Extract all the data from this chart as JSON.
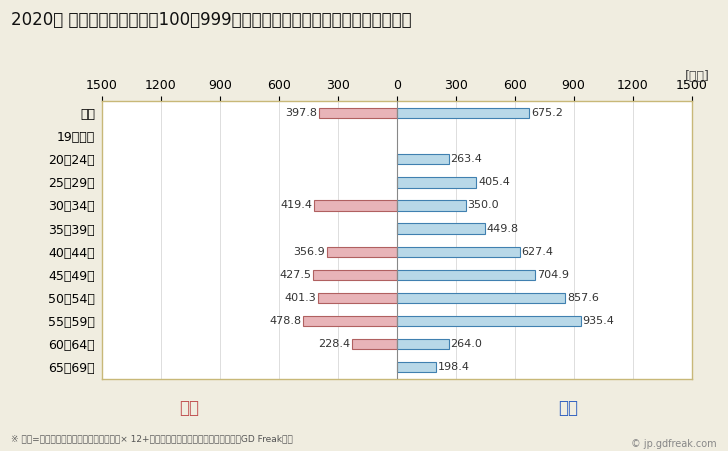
{
  "title": "2020年 民間企業（従業者数100〜999人）フルタイム労働者の男女別平均年収",
  "unit_label": "[万円]",
  "footnote": "※ 年収=「きまって支給する現金給与額」× 12+「年間賞与その他特別給与額」としてGD Freak推計",
  "copyright": "© jp.gdfreak.com",
  "categories": [
    "全体",
    "19歳以下",
    "20〜24歳",
    "25〜29歳",
    "30〜34歳",
    "35〜39歳",
    "40〜44歳",
    "45〜49歳",
    "50〜54歳",
    "55〜59歳",
    "60〜64歳",
    "65〜69歳"
  ],
  "female_values": [
    397.8,
    0,
    0,
    0,
    419.4,
    0,
    356.9,
    427.5,
    401.3,
    478.8,
    228.4,
    0
  ],
  "male_values": [
    675.2,
    0,
    263.4,
    405.4,
    350.0,
    449.8,
    627.4,
    704.9,
    857.6,
    935.4,
    264.0,
    198.4
  ],
  "female_color": "#e8b4b8",
  "male_color": "#b8d8e8",
  "female_border_color": "#b06060",
  "male_border_color": "#4080b0",
  "female_label": "女性",
  "male_label": "男性",
  "female_label_color": "#c05050",
  "male_label_color": "#3060c0",
  "xlim": 1500,
  "bg_color": "#f0ede0",
  "plot_bg_color": "#ffffff",
  "grid_color": "#d0d0d0",
  "border_color": "#c8b878",
  "title_fontsize": 12,
  "tick_fontsize": 9,
  "label_fontsize": 9,
  "bar_height": 0.45,
  "value_fontsize": 8
}
